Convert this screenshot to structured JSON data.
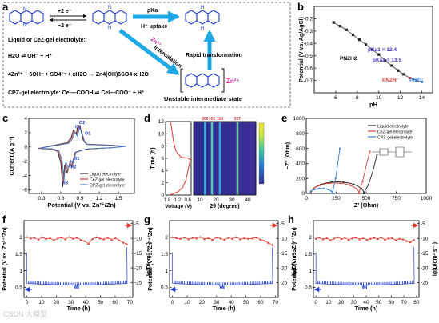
{
  "panel_letters": [
    "a",
    "b",
    "c",
    "d",
    "e",
    "f",
    "g",
    "h"
  ],
  "panel_a": {
    "arrow_top_1": "+2 e⁻",
    "arrow_bot_1": "−2 e⁻",
    "pk_label": "pKa",
    "uptake": "H⁺ uptake",
    "zn_label": "Zn²⁺",
    "intercalation": "intercalation",
    "rapid": "Rapid transformation",
    "line1": "Liquid or CeZ-gel electrolyte:",
    "line2": "H2O ⇌ OH⁻ + H⁺",
    "line3": "4Zn²⁺ + 6OH⁻ + SO4²⁻ + xH2O → Zn4(OH)6SO4·xH2O",
    "line4": "CPZ-gel electrolyte: Cel—COOH ⇌ Cel—COO⁻ + H⁺",
    "unstable": "Unstable intermediate state",
    "zn_bracket": "Zn²⁺"
  },
  "chart_data": [
    {
      "panel": "b",
      "type": "scatter",
      "xlabel": "pH",
      "ylabel": "Potential (V vs. Ag/AgCl)",
      "xlim": [
        4,
        15
      ],
      "ylim": [
        -0.8,
        -0.1
      ],
      "xticks": [
        6,
        8,
        10,
        12,
        14
      ],
      "yticks": [
        -0.7,
        -0.6,
        -0.5,
        -0.4,
        -0.3,
        -0.2
      ],
      "x": [
        5.8,
        6.4,
        7.0,
        7.6,
        8.2,
        8.8,
        9.4,
        10.0,
        10.6,
        11.2,
        11.8,
        12.3,
        12.9,
        13.5,
        14.0
      ],
      "y": [
        -0.23,
        -0.26,
        -0.29,
        -0.33,
        -0.37,
        -0.41,
        -0.45,
        -0.49,
        -0.54,
        -0.58,
        -0.62,
        -0.65,
        -0.68,
        -0.7,
        -0.71
      ],
      "annotations": [
        "pKa1 = 12.4",
        "pKa2 = 13.5",
        "PNZH2",
        "PNZH⁻",
        "PNZ²⁻"
      ]
    },
    {
      "panel": "c",
      "type": "line",
      "xlabel": "Potential (V vs. Zn²⁺/Zn)",
      "ylabel": "Current (A g⁻¹)",
      "xlim": [
        0.1,
        1.75
      ],
      "ylim": [
        -6.5,
        4
      ],
      "xticks": [
        0.3,
        0.6,
        0.9,
        1.2,
        1.5
      ],
      "yticks": [
        -6,
        -4,
        -2,
        0,
        2,
        4
      ],
      "peak_labels": [
        "O1",
        "O2",
        "O3",
        "R1",
        "R2",
        "R3"
      ],
      "series": [
        {
          "name": "Liquid electrolyte",
          "color": "#222222"
        },
        {
          "name": "CeZ-gel electrolyte",
          "color": "#d94040"
        },
        {
          "name": "CPZ-gel electrolyte",
          "color": "#3a7fd0"
        }
      ]
    },
    {
      "panel": "d",
      "type": "heatmap",
      "left_xlabel": "Voltage (V)",
      "left_xticks": [
        "1.8",
        "1.2",
        "0.6"
      ],
      "ylabel": "Time (h)",
      "yticks": [
        0,
        2,
        4,
        6,
        8,
        10,
        12
      ],
      "xlabel": "2θ (degree)",
      "xticks": [
        10,
        20,
        30,
        40
      ],
      "peak_labels": [
        "200",
        "101",
        "110",
        "31T"
      ]
    },
    {
      "panel": "e",
      "type": "line",
      "xlabel": "Z' (Ohm)",
      "ylabel": "−Z'' (Ohm)",
      "xlim": [
        0,
        1000
      ],
      "ylim": [
        0,
        1000
      ],
      "xticks": [
        0,
        250,
        500,
        750,
        1000
      ],
      "yticks": [
        0,
        200,
        400,
        600,
        800,
        1000
      ],
      "series": [
        {
          "name": "Liquid electrolyte",
          "color": "#222222"
        },
        {
          "name": "CeZ-gel electrolyte",
          "color": "#d94040"
        },
        {
          "name": "CPZ-gel electrolyte",
          "color": "#3a7fd0"
        }
      ]
    },
    {
      "panel": "f",
      "type": "line",
      "xlabel": "Time (h)",
      "ylabel_left": "Potential (V vs. Zn²⁺/Zn)",
      "ylabel_right": "lg(D/cm² s⁻¹)",
      "xlim": [
        -2,
        72
      ],
      "xticks": [
        0,
        10,
        20,
        30,
        40,
        50,
        60,
        70
      ],
      "ylim_left": [
        0.2,
        2.5
      ],
      "yticks_left": [
        0.5,
        1.0,
        1.5,
        2.0
      ],
      "ylim_right": [
        -30,
        -4
      ],
      "yticks_right": [
        -5,
        -10,
        -15,
        -20,
        -25
      ],
      "lgD": [
        -9.5,
        -10.0,
        -9.8,
        -10.4,
        -9.6,
        -10.2,
        -9.9,
        -10.6,
        -10.0,
        -9.7,
        -10.3,
        -9.5,
        -10.1,
        -9.8,
        -10.5,
        -10.9,
        -11.8,
        -10.2,
        -9.6,
        -10.0,
        -10.3,
        -9.8,
        -10.4,
        -9.9,
        -10.6,
        -11.4,
        -12.0
      ]
    },
    {
      "panel": "g",
      "type": "line",
      "xlabel": "Time (h)",
      "ylabel_left": "Potential (V vs. Zn²⁺/Zn)",
      "ylabel_right": "lg(D/cm² s⁻¹)",
      "xlim": [
        -2,
        72
      ],
      "xticks": [
        0,
        10,
        20,
        30,
        40,
        50,
        60,
        70
      ],
      "ylim_left": [
        0.2,
        2.5
      ],
      "yticks_left": [
        0.5,
        1.0,
        1.5,
        2.0
      ],
      "ylim_right": [
        -30,
        -4
      ],
      "yticks_right": [
        -5,
        -10,
        -15,
        -20,
        -25
      ],
      "lgD": [
        -9.6,
        -9.9,
        -10.1,
        -9.7,
        -10.3,
        -9.8,
        -10.0,
        -9.5,
        -10.2,
        -9.9,
        -10.5,
        -9.7,
        -10.0,
        -10.4,
        -9.8,
        -10.1,
        -9.6,
        -10.3,
        -9.9,
        -10.2,
        -10.0,
        -9.7,
        -10.4,
        -10.8,
        -11.5,
        -12.2
      ]
    },
    {
      "panel": "h",
      "type": "line",
      "xlabel": "Time (h)",
      "ylabel_left": "Potential (V vs. Zn²⁺/Zn)",
      "ylabel_right": "lg(D/cm² s⁻¹)",
      "xlim": [
        -2,
        82
      ],
      "xticks": [
        0,
        10,
        20,
        30,
        40,
        50,
        60,
        70,
        80
      ],
      "ylim_left": [
        0.2,
        2.5
      ],
      "yticks_left": [
        0.5,
        1.0,
        1.5,
        2.0
      ],
      "ylim_right": [
        -30,
        -4
      ],
      "yticks_right": [
        -5,
        -10,
        -15,
        -20,
        -25
      ],
      "lgD": [
        -10.1,
        -9.7,
        -10.3,
        -9.9,
        -10.6,
        -10.0,
        -9.6,
        -10.2,
        -9.8,
        -10.4,
        -10.0,
        -9.7,
        -10.3,
        -9.9,
        -10.5,
        -10.1,
        -9.8,
        -10.2,
        -9.7,
        -10.4,
        -10.0,
        -9.9,
        -10.6,
        -10.1,
        -10.3,
        -10.9,
        -11.3,
        -10.5
      ]
    }
  ],
  "watermark": "CSDN 大模型"
}
